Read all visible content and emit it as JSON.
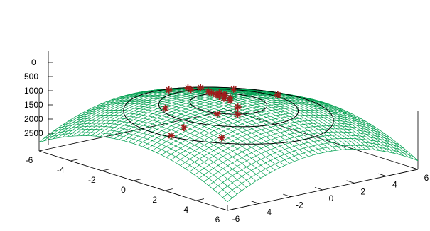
{
  "chart_data": {
    "type": "surface3d",
    "title": "",
    "xlabel": "",
    "ylabel": "",
    "zlabel": "",
    "xlim": [
      -6,
      6
    ],
    "ylim": [
      -6,
      6
    ],
    "zlim": [
      -3000,
      0
    ],
    "x_ticks": [
      {
        "value": -6,
        "label": "-6"
      },
      {
        "value": -4,
        "label": "-4"
      },
      {
        "value": -2,
        "label": "-2"
      },
      {
        "value": 0,
        "label": "0"
      },
      {
        "value": 2,
        "label": "2"
      },
      {
        "value": 4,
        "label": "4"
      },
      {
        "value": 6,
        "label": "6"
      }
    ],
    "y_ticks": [
      {
        "value": -6,
        "label": "-6"
      },
      {
        "value": -4,
        "label": "-4"
      },
      {
        "value": -2,
        "label": "-2"
      },
      {
        "value": 0,
        "label": "0"
      },
      {
        "value": 2,
        "label": "2"
      },
      {
        "value": 4,
        "label": "4"
      },
      {
        "value": 6,
        "label": "6"
      }
    ],
    "z_ticks": [
      {
        "value": 0,
        "label": "0"
      },
      {
        "value": -500,
        "label": "500"
      },
      {
        "value": -1000,
        "label": "1000"
      },
      {
        "value": -1500,
        "label": "1500"
      },
      {
        "value": -2000,
        "label": "2000"
      },
      {
        "value": -2500,
        "label": "2500"
      }
    ],
    "surface": {
      "function": "negative quadratic bowl: z = -30*(x^2 + y^2) - 3*x^2*y^2/10",
      "grid_points": 41,
      "mesh_color": "#00a050"
    },
    "contours": {
      "color": "#000000",
      "levels": [
        -90,
        -300,
        -700
      ]
    },
    "points": {
      "marker": "asterisk",
      "color": "#a01c1c",
      "xy": [
        [
          1.0,
          -4.6
        ],
        [
          0.9,
          -3.7
        ],
        [
          -4.0,
          1.4
        ],
        [
          -3.3,
          0.9
        ],
        [
          -3.6,
          1.8
        ],
        [
          -4.3,
          0.5
        ],
        [
          -2.2,
          0.9
        ],
        [
          -1.8,
          0.7
        ],
        [
          -1.4,
          0.6
        ],
        [
          -1.0,
          0.4
        ],
        [
          -0.6,
          0.3
        ],
        [
          -1.6,
          1.0
        ],
        [
          -1.2,
          0.9
        ],
        [
          -0.9,
          0.7
        ],
        [
          -0.5,
          0.6
        ],
        [
          -0.1,
          0.2
        ],
        [
          0.8,
          -0.2
        ],
        [
          0.9,
          -1.6
        ],
        [
          1.5,
          -0.9
        ],
        [
          -1.5,
          -2.5
        ],
        [
          2.8,
          -3.2
        ],
        [
          -0.5,
          3.6
        ],
        [
          -2.2,
          2.5
        ]
      ]
    }
  }
}
